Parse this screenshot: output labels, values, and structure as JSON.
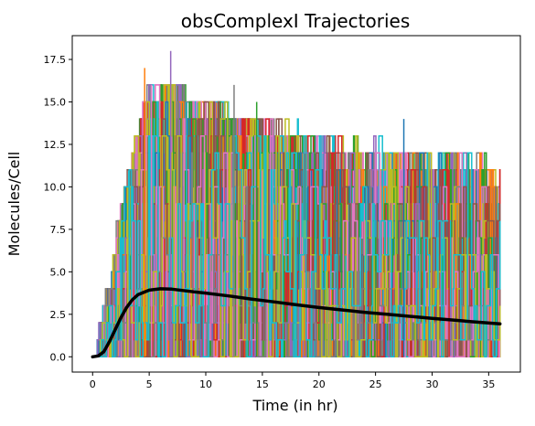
{
  "chart_data": {
    "type": "line",
    "title": "obsComplexI Trajectories",
    "xlabel": "Time (in hr)",
    "ylabel": "Molecules/Cell",
    "xlim": [
      -1.8,
      37.8
    ],
    "ylim": [
      -0.9,
      18.9
    ],
    "x_ticks": [
      0,
      5,
      10,
      15,
      20,
      25,
      30,
      35
    ],
    "x_tick_labels": [
      "0",
      "5",
      "10",
      "15",
      "20",
      "25",
      "30",
      "35"
    ],
    "y_ticks": [
      0.0,
      2.5,
      5.0,
      7.5,
      10.0,
      12.5,
      15.0,
      17.5
    ],
    "y_tick_labels": [
      "0.0",
      "2.5",
      "5.0",
      "7.5",
      "10.0",
      "12.5",
      "15.0",
      "17.5"
    ],
    "grid": false,
    "legend": "none",
    "trajectory_colors": [
      "#1f77b4",
      "#ff7f0e",
      "#2ca02c",
      "#d62728",
      "#9467bd",
      "#8c564b",
      "#e377c2",
      "#7f7f7f",
      "#bcbd22",
      "#17becf"
    ],
    "stochastic_trajectories": {
      "style": "step",
      "time_range": [
        0,
        36
      ],
      "min_value": 0,
      "max_value": 18
    },
    "mean_trajectory": {
      "color": "#000000",
      "x": [
        0,
        0.5,
        1,
        1.5,
        2,
        2.5,
        3,
        3.5,
        4,
        5,
        6,
        7,
        8,
        9,
        10,
        12,
        14,
        16,
        18,
        20,
        22,
        24,
        26,
        28,
        30,
        32,
        34,
        36
      ],
      "y": [
        0.0,
        0.05,
        0.3,
        0.9,
        1.6,
        2.3,
        2.9,
        3.35,
        3.65,
        3.92,
        4.0,
        3.98,
        3.9,
        3.82,
        3.75,
        3.58,
        3.4,
        3.23,
        3.06,
        2.9,
        2.76,
        2.62,
        2.5,
        2.38,
        2.26,
        2.15,
        2.04,
        1.94
      ]
    }
  }
}
